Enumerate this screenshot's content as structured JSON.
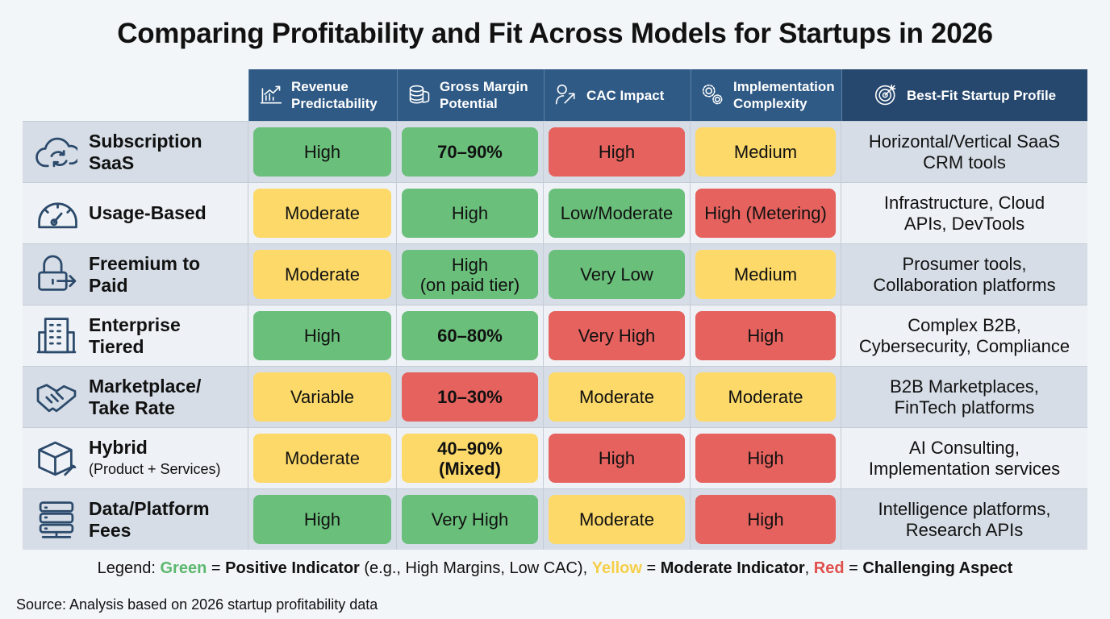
{
  "title": "Comparing Profitability and Fit Across Models for Startups in 2026",
  "colors": {
    "header": "#2f5a85",
    "header_last": "#26486e",
    "green": "#6abf7b",
    "yellow": "#fcd969",
    "red": "#e5625e"
  },
  "chart_data": {
    "type": "table",
    "columns": [
      {
        "label": "Revenue Predictability",
        "icon": "chart-growth-icon"
      },
      {
        "label": "Gross Margin Potential",
        "icon": "coins-stack-icon"
      },
      {
        "label": "CAC Impact",
        "icon": "user-arrow-icon"
      },
      {
        "label": "Implementation Complexity",
        "icon": "gears-icon"
      },
      {
        "label": "Best-Fit Startup Profile",
        "icon": "target-icon"
      }
    ],
    "rows": [
      {
        "name": "Subscription SaaS",
        "subtitle": "",
        "icon": "cloud-sync-icon",
        "cells": [
          {
            "v": "High",
            "c": "g"
          },
          {
            "v": "70–90%",
            "c": "g",
            "bold": true
          },
          {
            "v": "High",
            "c": "r"
          },
          {
            "v": "Medium",
            "c": "y"
          }
        ],
        "fit": "Horizontal/Vertical SaaS\nCRM tools"
      },
      {
        "name": "Usage-Based",
        "subtitle": "",
        "icon": "gauge-icon",
        "cells": [
          {
            "v": "Moderate",
            "c": "y"
          },
          {
            "v": "High",
            "c": "g"
          },
          {
            "v": "Low/Moderate",
            "c": "g"
          },
          {
            "v": "High (Metering)",
            "c": "r"
          }
        ],
        "fit": "Infrastructure, Cloud\nAPIs, DevTools"
      },
      {
        "name": "Freemium to Paid",
        "subtitle": "",
        "icon": "lock-arrow-icon",
        "cells": [
          {
            "v": "Moderate",
            "c": "y"
          },
          {
            "v": "High\n(on paid tier)",
            "c": "g"
          },
          {
            "v": "Very Low",
            "c": "g"
          },
          {
            "v": "Medium",
            "c": "y"
          }
        ],
        "fit": "Prosumer tools,\nCollaboration platforms"
      },
      {
        "name": "Enterprise Tiered",
        "subtitle": "",
        "icon": "building-icon",
        "cells": [
          {
            "v": "High",
            "c": "g"
          },
          {
            "v": "60–80%",
            "c": "g",
            "bold": true
          },
          {
            "v": "Very High",
            "c": "r"
          },
          {
            "v": "High",
            "c": "r"
          }
        ],
        "fit": "Complex B2B,\nCybersecurity, Compliance"
      },
      {
        "name": "Marketplace/ Take Rate",
        "subtitle": "",
        "icon": "handshake-icon",
        "cells": [
          {
            "v": "Variable",
            "c": "y"
          },
          {
            "v": "10–30%",
            "c": "r",
            "bold": true
          },
          {
            "v": "Moderate",
            "c": "y"
          },
          {
            "v": "Moderate",
            "c": "y"
          }
        ],
        "fit": "B2B Marketplaces,\nFinTech platforms"
      },
      {
        "name": "Hybrid",
        "subtitle": "(Product + Services)",
        "icon": "box-wrench-icon",
        "cells": [
          {
            "v": "Moderate",
            "c": "y"
          },
          {
            "v": "40–90%\n(Mixed)",
            "c": "y",
            "bold": true
          },
          {
            "v": "High",
            "c": "r"
          },
          {
            "v": "High",
            "c": "r"
          }
        ],
        "fit": "AI Consulting,\nImplementation services"
      },
      {
        "name": "Data/Platform Fees",
        "subtitle": "",
        "icon": "server-icon",
        "cells": [
          {
            "v": "High",
            "c": "g"
          },
          {
            "v": "Very High",
            "c": "g"
          },
          {
            "v": "Moderate",
            "c": "y"
          },
          {
            "v": "High",
            "c": "r"
          }
        ],
        "fit": "Intelligence platforms,\nResearch APIs"
      }
    ]
  },
  "legend": {
    "prefix": "Legend: ",
    "green": "Green",
    "eq": " = ",
    "green_text": "Positive Indicator",
    "green_note": " (e.g., High Margins, Low CAC), ",
    "yellow": "Yellow",
    "yellow_text": "Moderate Indicator",
    "sep": ", ",
    "red": "Red",
    "red_text": "Challenging Aspect"
  },
  "source": "Source: Analysis based on 2026 startup profitability data"
}
